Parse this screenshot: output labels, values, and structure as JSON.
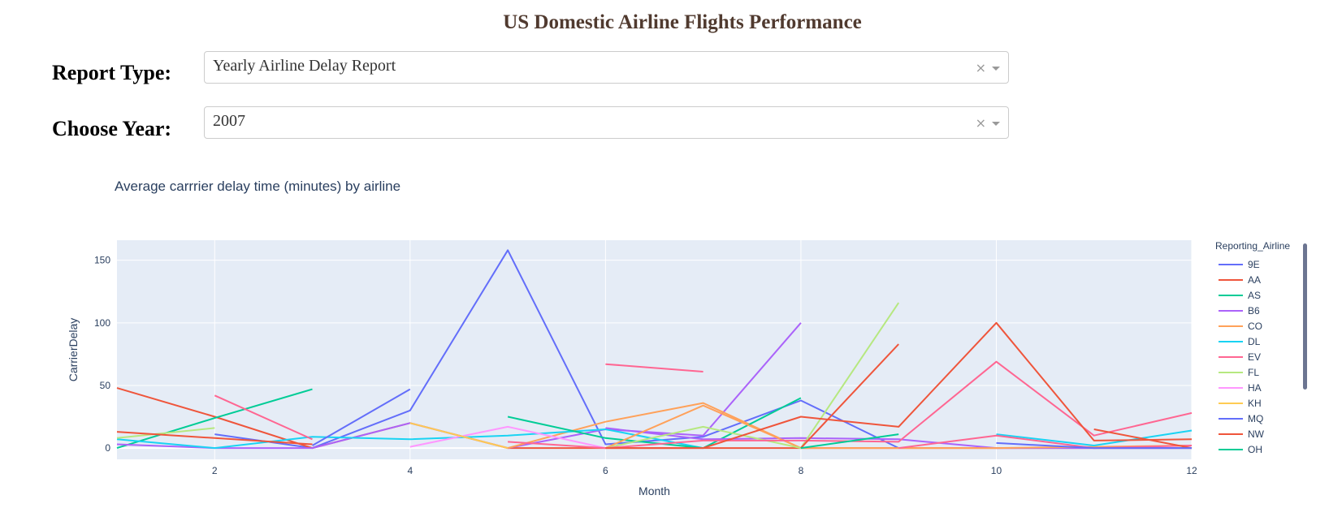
{
  "header": {
    "title": "US Domestic Airline Flights Performance"
  },
  "controls": {
    "report_type": {
      "label": "Report Type:",
      "value": "Yearly Airline Delay Report",
      "clear_icon": "×"
    },
    "year": {
      "label": "Choose Year:",
      "value": "2007",
      "clear_icon": "×"
    }
  },
  "chart_data": {
    "type": "line",
    "title": "Average carrrier delay time (minutes) by airline",
    "xlabel": "Month",
    "ylabel": "CarrierDelay",
    "xlim": [
      1,
      12
    ],
    "ylim": [
      -9,
      166
    ],
    "xticks": [
      2,
      4,
      6,
      8,
      10,
      12
    ],
    "yticks": [
      0,
      50,
      100,
      150
    ],
    "grid": true,
    "plot_background": "#E5ECF6",
    "legend_title": "Reporting_Airline",
    "legend_position": "right",
    "series": [
      {
        "name": "9E",
        "color": "#636EFA",
        "points": [
          [
            2,
            11
          ],
          [
            3,
            0
          ],
          [
            4,
            30
          ],
          [
            5,
            158
          ],
          [
            6,
            3
          ],
          [
            7,
            9
          ],
          [
            8,
            38
          ],
          [
            9,
            0
          ]
        ]
      },
      {
        "name": "AA",
        "color": "#EF553B",
        "points": [
          [
            1,
            48
          ],
          [
            2,
            25
          ],
          [
            3,
            0
          ],
          [
            4,
            20
          ],
          [
            5,
            0
          ],
          [
            6,
            0
          ],
          [
            7,
            0
          ],
          [
            8,
            0
          ],
          [
            9,
            0
          ],
          [
            10,
            0
          ],
          [
            11,
            0
          ],
          [
            12,
            0
          ]
        ]
      },
      {
        "name": "AS",
        "color": "#00CC96",
        "points": [
          [
            1,
            0
          ],
          [
            2,
            24
          ],
          [
            3,
            47
          ]
        ]
      },
      {
        "name": "B6",
        "color": "#AB63FA",
        "points": [
          [
            1,
            3
          ],
          [
            2,
            0
          ],
          [
            3,
            0
          ],
          [
            4,
            20
          ],
          [
            5,
            0
          ],
          [
            6,
            15
          ],
          [
            7,
            10
          ],
          [
            8,
            100
          ]
        ]
      },
      {
        "name": "CO",
        "color": "#FFA15A",
        "points": [
          [
            5,
            0
          ],
          [
            6,
            21
          ],
          [
            7,
            36
          ],
          [
            8,
            0
          ]
        ]
      },
      {
        "name": "DL",
        "color": "#19D3F3",
        "points": [
          [
            1,
            7
          ],
          [
            2,
            0
          ],
          [
            3,
            9
          ],
          [
            4,
            7
          ],
          [
            5,
            10
          ],
          [
            6,
            15
          ],
          [
            7,
            0
          ]
        ]
      },
      {
        "name": "EV",
        "color": "#FF6692",
        "points": [
          [
            2,
            42
          ],
          [
            3,
            7
          ]
        ]
      },
      {
        "name": "FL",
        "color": "#B6E880",
        "points": [
          [
            1,
            8
          ],
          [
            2,
            16
          ]
        ]
      },
      {
        "name": "HA",
        "color": "#FF97FF",
        "points": [
          [
            4,
            1
          ],
          [
            5,
            17
          ],
          [
            6,
            0
          ]
        ]
      },
      {
        "name": "KH",
        "color": "#FECB52",
        "points": [
          [
            4,
            20
          ],
          [
            5,
            0
          ]
        ]
      },
      {
        "name": "MQ",
        "color": "#636EFA",
        "points": [
          [
            3,
            2
          ],
          [
            4,
            47
          ]
        ]
      },
      {
        "name": "NW",
        "color": "#EF553B",
        "points": [
          [
            1,
            13
          ],
          [
            2,
            8
          ],
          [
            3,
            3
          ]
        ]
      },
      {
        "name": "OH",
        "color": "#00CC96",
        "points": [
          [
            5,
            25
          ],
          [
            6,
            8
          ],
          [
            7,
            0
          ],
          [
            8,
            40
          ]
        ]
      },
      {
        "name": "",
        "color": "#AB63FA",
        "points": [
          [
            6,
            16
          ],
          [
            7,
            7
          ],
          [
            8,
            8
          ],
          [
            9,
            7
          ],
          [
            10,
            0
          ],
          [
            11,
            0
          ],
          [
            12,
            0
          ]
        ]
      },
      {
        "name": "",
        "color": "#FFA15A",
        "points": [
          [
            6,
            0
          ],
          [
            7,
            34
          ],
          [
            8,
            0
          ],
          [
            9,
            0
          ],
          [
            10,
            0
          ],
          [
            11,
            1
          ],
          [
            12,
            2
          ]
        ]
      },
      {
        "name": "",
        "color": "#19D3F3",
        "points": [
          [
            10,
            11
          ],
          [
            11,
            2
          ],
          [
            12,
            14
          ]
        ]
      },
      {
        "name": "",
        "color": "#FF6692",
        "points": [
          [
            6,
            67
          ],
          [
            7,
            61
          ]
        ]
      },
      {
        "name": "",
        "color": "#B6E880",
        "points": [
          [
            6,
            0
          ],
          [
            7,
            17
          ],
          [
            8,
            0
          ],
          [
            9,
            116
          ]
        ]
      },
      {
        "name": "",
        "color": "#FF6692",
        "points": [
          [
            5,
            5
          ],
          [
            6,
            0
          ],
          [
            7,
            6
          ],
          [
            8,
            6
          ],
          [
            9,
            5
          ],
          [
            10,
            69
          ],
          [
            11,
            10
          ],
          [
            12,
            28
          ]
        ]
      },
      {
        "name": "",
        "color": "#EF553B",
        "points": [
          [
            6,
            0
          ],
          [
            7,
            0
          ],
          [
            8,
            25
          ],
          [
            9,
            17
          ],
          [
            10,
            100
          ],
          [
            11,
            6
          ],
          [
            12,
            7
          ]
        ]
      },
      {
        "name": "",
        "color": "#FF6692",
        "points": [
          [
            9,
            0
          ],
          [
            10,
            10
          ],
          [
            11,
            0
          ],
          [
            12,
            2
          ]
        ]
      },
      {
        "name": "",
        "color": "#EF553B",
        "points": [
          [
            8,
            0
          ],
          [
            9,
            83
          ]
        ]
      },
      {
        "name": "",
        "color": "#00CC96",
        "points": [
          [
            8,
            0
          ],
          [
            9,
            11
          ]
        ]
      },
      {
        "name": "",
        "color": "#EF553B",
        "points": [
          [
            11,
            15
          ],
          [
            12,
            0
          ]
        ]
      },
      {
        "name": "",
        "color": "#636EFA",
        "points": [
          [
            10,
            4
          ],
          [
            11,
            0
          ],
          [
            12,
            0
          ]
        ]
      }
    ]
  }
}
